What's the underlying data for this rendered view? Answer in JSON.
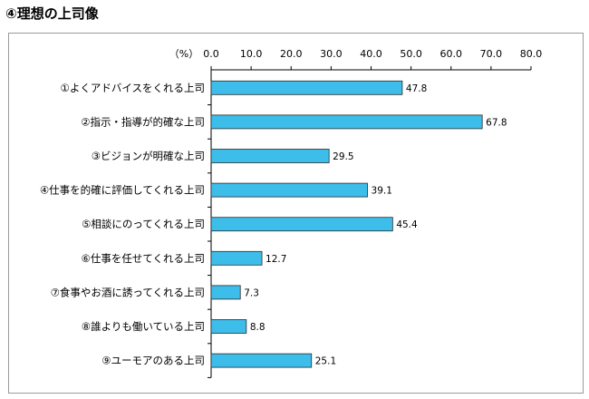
{
  "title": "④理想の上司像",
  "colors": {
    "bar_fill": "#3DBDEA",
    "bar_stroke": "#2a2a2a",
    "axis": "#000000",
    "frame": "#9a9a9a"
  },
  "chart_data": {
    "type": "bar",
    "orientation": "horizontal",
    "title": "",
    "unit_label": "（%）",
    "xlim": [
      0,
      80
    ],
    "ticks": [
      "0.0",
      "10.0",
      "20.0",
      "30.0",
      "40.0",
      "50.0",
      "60.0",
      "70.0",
      "80.0"
    ],
    "tick_values": [
      0,
      10,
      20,
      30,
      40,
      50,
      60,
      70,
      80
    ],
    "axis_position": "top",
    "grid": false,
    "categories": [
      "①よくアドバイスをくれる上司",
      "②指示・指導が的確な上司",
      "③ビジョンが明確な上司",
      "④仕事を的確に評価してくれる上司",
      "⑤相談にのってくれる上司",
      "⑥仕事を任せてくれる上司",
      "⑦食事やお酒に誘ってくれる上司",
      "⑧誰よりも働いている上司",
      "⑨ユーモアのある上司"
    ],
    "values": [
      47.8,
      67.8,
      29.5,
      39.1,
      45.4,
      12.7,
      7.3,
      8.8,
      25.1
    ],
    "value_labels": [
      "47.8",
      "67.8",
      "29.5",
      "39.1",
      "45.4",
      "12.7",
      "7.3",
      "8.8",
      "25.1"
    ]
  }
}
